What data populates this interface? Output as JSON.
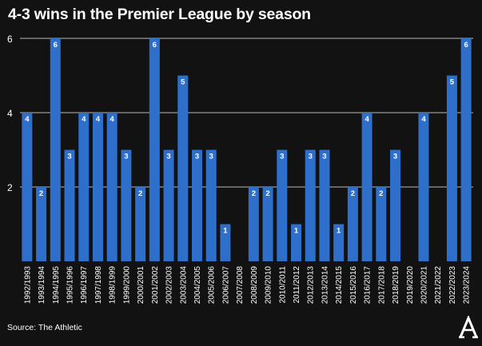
{
  "title": "4-3 wins in the Premier League by season",
  "source": "Source: The Athletic",
  "colors": {
    "background": "#121212",
    "bar": "#2e6fcc",
    "grid": "#b9b9b9",
    "text": "#ffffff"
  },
  "logo_icon": "the-athletic-logo-icon",
  "chart_data": {
    "type": "bar",
    "title": "4-3 wins in the Premier League by season",
    "xlabel": "",
    "ylabel": "",
    "ylim": [
      0,
      6
    ],
    "yticks": [
      2,
      4,
      6
    ],
    "grid": "horizontal",
    "categories": [
      "1992/1993",
      "1993/1994",
      "1994/1995",
      "1995/1996",
      "1996/1997",
      "1997/1998",
      "1998/1999",
      "1999/2000",
      "2000/2001",
      "2001/2002",
      "2002/2003",
      "2003/2004",
      "2004/2005",
      "2005/2006",
      "2006/2007",
      "2007/2008",
      "2008/2009",
      "2009/2010",
      "2010/2011",
      "2011/2012",
      "2012/2013",
      "2013/2014",
      "2014/2015",
      "2015/2016",
      "2016/2017",
      "2017/2018",
      "2018/2019",
      "2019/2020",
      "2020/2021",
      "2021/2022",
      "2022/2023",
      "2023/2024"
    ],
    "values": [
      4,
      2,
      6,
      3,
      4,
      4,
      4,
      3,
      2,
      6,
      3,
      5,
      3,
      3,
      1,
      0,
      2,
      2,
      3,
      1,
      3,
      3,
      1,
      2,
      4,
      2,
      3,
      0,
      4,
      0,
      5,
      6
    ]
  }
}
